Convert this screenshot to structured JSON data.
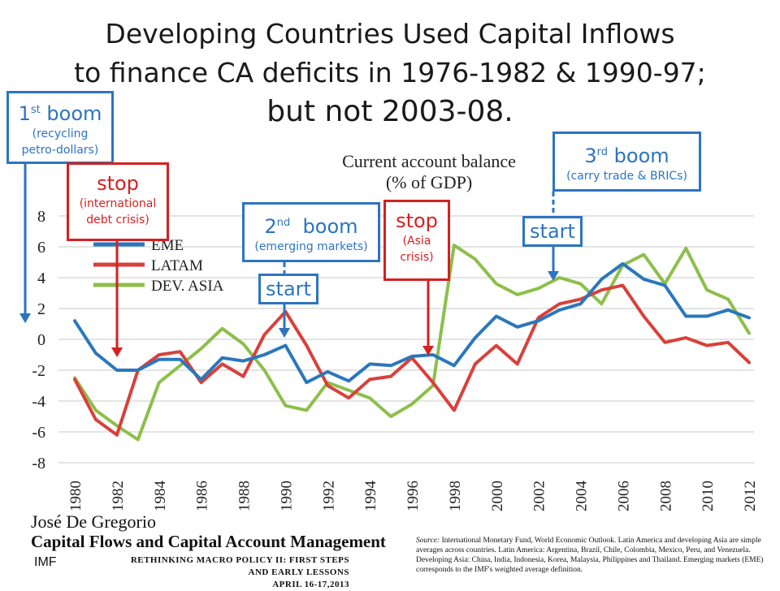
{
  "slide": {
    "title_line1": "Developing Countries Used Capital Inflows",
    "title_line2": "to finance CA deficits in 1976-1982 & 1990-97;",
    "title_line3": "but not 2003-08."
  },
  "annotations": {
    "boom1": {
      "num": "1",
      "sup": "st",
      "word": "boom",
      "detail_line1": "(recycling",
      "detail_line2": "petro-dollars)"
    },
    "stop1": {
      "title": "stop",
      "detail_line1": "(international",
      "detail_line2": "debt crisis)"
    },
    "boom2": {
      "num": "2",
      "sup": "nd",
      "word": "boom",
      "detail": "(emerging markets)",
      "start": "start"
    },
    "stop2": {
      "title": "stop",
      "detail_line1": "(Asia",
      "detail_line2": "crisis)"
    },
    "boom3": {
      "num": "3",
      "sup": "rd",
      "word": "boom",
      "detail": "(carry trade & BRICs)",
      "start": "start"
    }
  },
  "colors": {
    "eme": "#2a77bd",
    "latam": "#d9403a",
    "dev_asia": "#8cbf4a",
    "annotation_blue": "#2d74c0",
    "annotation_red": "#d62020"
  },
  "chart_data": {
    "type": "line",
    "title": "Current account balance",
    "subtitle": "(% of GDP)",
    "x": [
      1980,
      1981,
      1982,
      1983,
      1984,
      1985,
      1986,
      1987,
      1988,
      1989,
      1990,
      1991,
      1992,
      1993,
      1994,
      1995,
      1996,
      1997,
      1998,
      1999,
      2000,
      2001,
      2002,
      2003,
      2004,
      2005,
      2006,
      2007,
      2008,
      2009,
      2010,
      2011,
      2012
    ],
    "x_ticks": [
      "1980",
      "1982",
      "1984",
      "1986",
      "1988",
      "1990",
      "1992",
      "1994",
      "1996",
      "1998",
      "2000",
      "2002",
      "2004",
      "2006",
      "2008",
      "2010",
      "2012"
    ],
    "y_ticks": [
      "8",
      "6",
      "4",
      "2",
      "0",
      "-2",
      "-4",
      "-6",
      "-8"
    ],
    "ylim": [
      -8,
      8
    ],
    "grid": true,
    "legend_position": "top-left",
    "series": [
      {
        "name": "EME",
        "values": [
          1.2,
          -0.9,
          -2.0,
          -2.0,
          -1.3,
          -1.3,
          -2.6,
          -1.2,
          -1.4,
          -1.0,
          -0.4,
          -2.8,
          -2.1,
          -2.7,
          -1.6,
          -1.7,
          -1.1,
          -1.0,
          -1.7,
          0.1,
          1.5,
          0.8,
          1.2,
          1.9,
          2.3,
          3.9,
          4.9,
          3.9,
          3.5,
          1.5,
          1.5,
          1.9,
          1.4
        ]
      },
      {
        "name": "LATAM",
        "values": [
          -2.6,
          -5.2,
          -6.2,
          -2.0,
          -1.0,
          -0.8,
          -2.8,
          -1.6,
          -2.4,
          0.3,
          1.8,
          -0.4,
          -3.0,
          -3.8,
          -2.6,
          -2.4,
          -1.2,
          -2.8,
          -4.6,
          -1.6,
          -0.4,
          -1.6,
          1.4,
          2.3,
          2.6,
          3.2,
          3.5,
          1.5,
          -0.2,
          0.1,
          -0.4,
          -0.2,
          -1.5
        ]
      },
      {
        "name": "DEV. ASIA",
        "values": [
          -2.5,
          -4.6,
          -5.6,
          -6.5,
          -2.8,
          -1.7,
          -0.6,
          0.7,
          -0.3,
          -2.0,
          -4.3,
          -4.6,
          -2.8,
          -3.3,
          -3.8,
          -5.0,
          -4.2,
          -3.0,
          6.1,
          5.2,
          3.6,
          2.9,
          3.3,
          4.0,
          3.6,
          2.3,
          4.8,
          5.5,
          3.6,
          5.9,
          3.2,
          2.6,
          0.4
        ]
      }
    ]
  },
  "footer": {
    "author": "José De Gregorio",
    "talk_title": "Capital Flows and Capital Account Management",
    "conference": "RETHINKING MACRO POLICY II: FIRST STEPS AND EARLY LESSONS",
    "conference_dates": "APRIL 16-17,2013",
    "imf": "IMF",
    "source_label": "Source:",
    "source_text": "International Monetary Fund, World Economic Outlook. Latin America and developing Asia are simple averages across countries. Latin America: Argentina, Brazil, Chile, Colombia, Mexico, Peru, and Venezuela. Developing Asia: China, India, Indonesia, Korea, Malaysia, Philippines and Thailand. Emerging markets (EME) corresponds to the IMF's weighted average definition."
  }
}
